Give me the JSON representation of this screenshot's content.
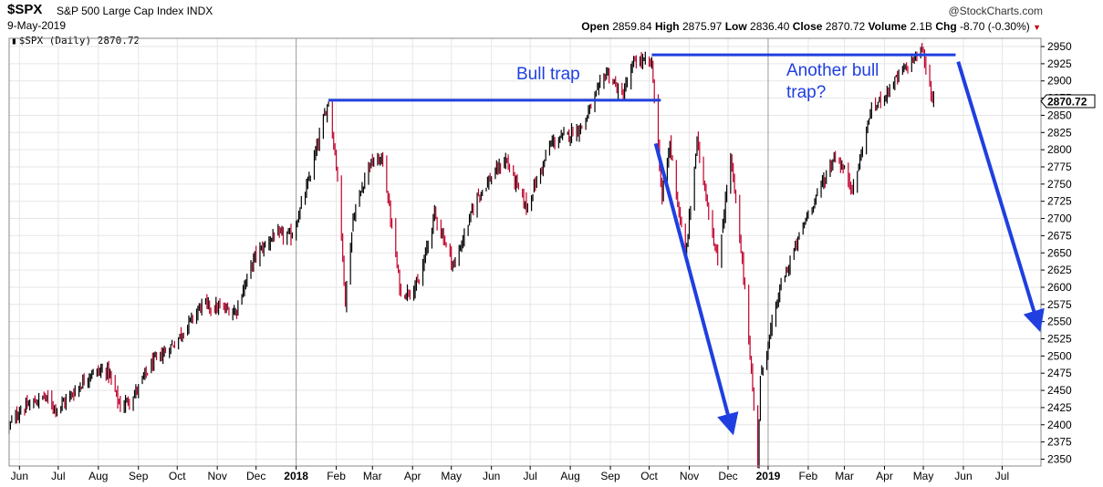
{
  "header": {
    "symbol": "$SPX",
    "name": "S&P 500 Large Cap Index",
    "exchange": "INDX",
    "date": "9-May-2019",
    "brand": "@StockCharts.com",
    "open_label": "Open",
    "open": "2859.84",
    "high_label": "High",
    "high": "2875.97",
    "low_label": "Low",
    "low": "2836.40",
    "close_label": "Close",
    "close": "2870.72",
    "volume_label": "Volume",
    "volume": "2.1B",
    "chg_label": "Chg",
    "chg": "-8.70 (-0.30%)"
  },
  "legend": {
    "text": "$SPX (Daily) 2870.72"
  },
  "price_tag": "2870.72",
  "annotations": {
    "bull_trap": "Bull trap",
    "another": "Another bull\ntrap?"
  },
  "colors": {
    "up": "#000000",
    "down": "#c0002a",
    "annotation": "#1f3fe0",
    "grid": "#e0e0e0"
  },
  "chart_data": {
    "type": "bar",
    "subtype": "ohlc",
    "title": "$SPX (Daily)",
    "ylim": [
      2340,
      2962
    ],
    "y_ticks": [
      2350,
      2375,
      2400,
      2425,
      2450,
      2475,
      2500,
      2525,
      2550,
      2575,
      2600,
      2625,
      2650,
      2675,
      2700,
      2725,
      2750,
      2775,
      2800,
      2825,
      2850,
      2875,
      2900,
      2925,
      2950
    ],
    "x_start": "2017-05-24",
    "x_end": "2019-07-31",
    "x_ticks": [
      {
        "label": "Jun",
        "date": "2017-06-01",
        "major": false
      },
      {
        "label": "Jul",
        "date": "2017-07-01",
        "major": false
      },
      {
        "label": "Aug",
        "date": "2017-08-01",
        "major": false
      },
      {
        "label": "Sep",
        "date": "2017-09-01",
        "major": false
      },
      {
        "label": "Oct",
        "date": "2017-10-01",
        "major": false
      },
      {
        "label": "Nov",
        "date": "2017-11-01",
        "major": false
      },
      {
        "label": "Dec",
        "date": "2017-12-01",
        "major": false
      },
      {
        "label": "2018",
        "date": "2018-01-01",
        "major": true
      },
      {
        "label": "Feb",
        "date": "2018-02-01",
        "major": false
      },
      {
        "label": "Mar",
        "date": "2018-03-01",
        "major": false
      },
      {
        "label": "Apr",
        "date": "2018-04-01",
        "major": false
      },
      {
        "label": "May",
        "date": "2018-05-01",
        "major": false
      },
      {
        "label": "Jun",
        "date": "2018-06-01",
        "major": false
      },
      {
        "label": "Jul",
        "date": "2018-07-01",
        "major": false
      },
      {
        "label": "Aug",
        "date": "2018-08-01",
        "major": false
      },
      {
        "label": "Sep",
        "date": "2018-09-01",
        "major": false
      },
      {
        "label": "Oct",
        "date": "2018-10-01",
        "major": false
      },
      {
        "label": "Nov",
        "date": "2018-11-01",
        "major": false
      },
      {
        "label": "Dec",
        "date": "2018-12-01",
        "major": false
      },
      {
        "label": "2019",
        "date": "2019-01-01",
        "major": true
      },
      {
        "label": "Feb",
        "date": "2019-02-01",
        "major": false
      },
      {
        "label": "Mar",
        "date": "2019-03-01",
        "major": false
      },
      {
        "label": "Apr",
        "date": "2019-04-01",
        "major": false
      },
      {
        "label": "May",
        "date": "2019-05-01",
        "major": false
      },
      {
        "label": "Jun",
        "date": "2019-06-01",
        "major": false
      },
      {
        "label": "Jul",
        "date": "2019-07-01",
        "major": false
      }
    ],
    "close_path": [
      {
        "date": "2017-05-24",
        "close": 2398
      },
      {
        "date": "2017-06-01",
        "close": 2420
      },
      {
        "date": "2017-06-12",
        "close": 2432
      },
      {
        "date": "2017-06-20",
        "close": 2441
      },
      {
        "date": "2017-06-30",
        "close": 2423
      },
      {
        "date": "2017-07-12",
        "close": 2445
      },
      {
        "date": "2017-07-26",
        "close": 2475
      },
      {
        "date": "2017-08-08",
        "close": 2480
      },
      {
        "date": "2017-08-18",
        "close": 2425
      },
      {
        "date": "2017-08-29",
        "close": 2445
      },
      {
        "date": "2017-09-11",
        "close": 2488
      },
      {
        "date": "2017-09-29",
        "close": 2519
      },
      {
        "date": "2017-10-20",
        "close": 2575
      },
      {
        "date": "2017-11-15",
        "close": 2565
      },
      {
        "date": "2017-11-30",
        "close": 2645
      },
      {
        "date": "2017-12-15",
        "close": 2676
      },
      {
        "date": "2017-12-29",
        "close": 2675
      },
      {
        "date": "2018-01-10",
        "close": 2750
      },
      {
        "date": "2018-01-26",
        "close": 2872
      },
      {
        "date": "2018-02-02",
        "close": 2762
      },
      {
        "date": "2018-02-08",
        "close": 2581
      },
      {
        "date": "2018-02-14",
        "close": 2700
      },
      {
        "date": "2018-02-26",
        "close": 2779
      },
      {
        "date": "2018-03-09",
        "close": 2786
      },
      {
        "date": "2018-03-23",
        "close": 2588
      },
      {
        "date": "2018-04-06",
        "close": 2605
      },
      {
        "date": "2018-04-18",
        "close": 2708
      },
      {
        "date": "2018-05-03",
        "close": 2630
      },
      {
        "date": "2018-05-21",
        "close": 2733
      },
      {
        "date": "2018-06-12",
        "close": 2786
      },
      {
        "date": "2018-06-28",
        "close": 2716
      },
      {
        "date": "2018-07-17",
        "close": 2809
      },
      {
        "date": "2018-08-10",
        "close": 2833
      },
      {
        "date": "2018-08-29",
        "close": 2914
      },
      {
        "date": "2018-09-10",
        "close": 2877
      },
      {
        "date": "2018-09-20",
        "close": 2930
      },
      {
        "date": "2018-10-03",
        "close": 2925
      },
      {
        "date": "2018-10-11",
        "close": 2728
      },
      {
        "date": "2018-10-17",
        "close": 2809
      },
      {
        "date": "2018-10-29",
        "close": 2641
      },
      {
        "date": "2018-11-07",
        "close": 2813
      },
      {
        "date": "2018-11-23",
        "close": 2633
      },
      {
        "date": "2018-12-03",
        "close": 2790
      },
      {
        "date": "2018-12-14",
        "close": 2600
      },
      {
        "date": "2018-12-24",
        "close": 2351
      },
      {
        "date": "2018-12-26",
        "close": 2467
      },
      {
        "date": "2019-01-10",
        "close": 2596
      },
      {
        "date": "2019-01-31",
        "close": 2704
      },
      {
        "date": "2019-02-22",
        "close": 2792
      },
      {
        "date": "2019-03-08",
        "close": 2743
      },
      {
        "date": "2019-03-21",
        "close": 2854
      },
      {
        "date": "2019-04-12",
        "close": 2907
      },
      {
        "date": "2019-04-30",
        "close": 2946
      },
      {
        "date": "2019-05-07",
        "close": 2884
      },
      {
        "date": "2019-05-09",
        "close": 2870
      }
    ],
    "overlay_lines": [
      {
        "name": "bull-trap-line",
        "from": {
          "date": "2018-01-26",
          "value": 2872
        },
        "to": {
          "date": "2018-10-10",
          "value": 2872
        }
      },
      {
        "name": "another-bull-trap-line",
        "from": {
          "date": "2018-10-03",
          "value": 2938
        },
        "to": {
          "date": "2019-05-26",
          "value": 2938
        }
      }
    ],
    "overlay_arrows": [
      {
        "name": "decline-arrow",
        "from": {
          "date": "2018-10-06",
          "value": 2809
        },
        "to": {
          "date": "2018-12-03",
          "value": 2400
        }
      },
      {
        "name": "projected-decline-arrow",
        "from": {
          "date": "2019-05-28",
          "value": 2928
        },
        "to": {
          "date": "2019-07-28",
          "value": 2550
        }
      }
    ]
  }
}
